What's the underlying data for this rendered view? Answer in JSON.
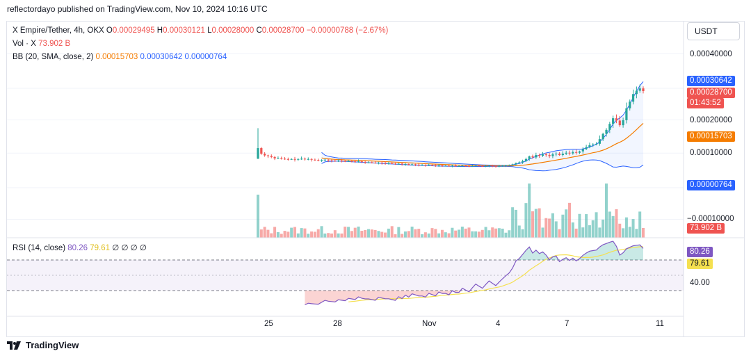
{
  "header": {
    "published": "reflectordayo published on TradingView.com, Nov 10, 2024 10:16 UTC"
  },
  "legend": {
    "symbol": "X Empire/Tether, 4h, OKX",
    "ohlc": {
      "o_label": "O",
      "o": "0.00029495",
      "h_label": "H",
      "h": "0.00030121",
      "l_label": "L",
      "l": "0.00028000",
      "c_label": "C",
      "c": "0.00028700",
      "change": "−0.00000788 (−2.67%)"
    },
    "vol_label": "Vol · X",
    "vol": "73.902 B",
    "bb_label": "BB (20, SMA, close, 2)",
    "bb_basis": "0.00015703",
    "bb_upper": "0.00030642",
    "bb_lower": "0.00000764"
  },
  "rsi_legend": {
    "label": "RSI (14, close)",
    "rsi": "80.26",
    "rsi_ma": "79.61",
    "extras": "∅ ∅ ∅ ∅"
  },
  "currency": "USDT",
  "price_axis": {
    "ticks": [
      "0.00040000",
      "0.00020000",
      "0.00010000",
      "−0.00010000"
    ]
  },
  "price_badges": {
    "bb_upper": "0.00030642",
    "last": "0.00028700",
    "countdown": "01:43:52",
    "bb_basis": "0.00015703",
    "bb_lower": "0.00000764",
    "volume": "73.902 B"
  },
  "rsi_axis": {
    "tick": "40.00",
    "rsi_badge": "80.26",
    "ma_badge": "79.61"
  },
  "time_axis": {
    "labels": [
      "25",
      "28",
      "Nov",
      "4",
      "7",
      "11"
    ]
  },
  "footer": {
    "brand": "TradingView"
  },
  "colors": {
    "up": "#26a69a",
    "down": "#ef5350",
    "bb_band": "#2962ff",
    "bb_basis": "#f57c00",
    "rsi": "#7e57c2",
    "rsi_ma": "#f5e050",
    "grid": "#f0f3fa"
  },
  "chart_data": [
    {
      "type": "candlestick",
      "title": "X Empire/Tether, 4h, OKX",
      "x_labels": [
        "25",
        "28",
        "Nov",
        "4",
        "7",
        "11"
      ],
      "y_ticks": [
        0.0004,
        0.0002,
        0.0001,
        -0.0001
      ],
      "closes": [
        0.000115,
        9.8e-05,
        9.3e-05,
        9.1e-05,
        8.8e-05,
        8.4e-05,
        8.5e-05,
        8.3e-05,
        8.2e-05,
        8.1e-05,
        8.2e-05,
        8e-05,
        8.2e-05,
        8.3e-05,
        8.1e-05,
        8.2e-05,
        8e-05,
        7.9e-05,
        7.8e-05,
        7.9e-05,
        8e-05,
        7.8e-05,
        7.7e-05,
        7.6e-05,
        7.7e-05,
        7.6e-05,
        7.5e-05,
        7.6e-05,
        7.5e-05,
        7.4e-05,
        7.5e-05,
        7.3e-05,
        7.2e-05,
        7.2e-05,
        7.1e-05,
        7e-05,
        7.1e-05,
        7e-05,
        6.9e-05,
        6.9e-05,
        6.8e-05,
        6.7e-05,
        6.8e-05,
        6.6e-05,
        6.7e-05,
        6.5e-05,
        6.6e-05,
        6.5e-05,
        6.4e-05,
        6.4e-05,
        6.3e-05,
        6.4e-05,
        6.3e-05,
        6.2e-05,
        6.3e-05,
        6.2e-05,
        6.2e-05,
        6.1e-05,
        6.2e-05,
        6.1e-05,
        6.1e-05,
        6.2e-05,
        6.1e-05,
        6e-05,
        6.1e-05,
        6.2e-05,
        6.1e-05,
        6e-05,
        6.1e-05,
        6.2e-05,
        6.1e-05,
        6e-05,
        6.1e-05,
        6.2e-05,
        6.3e-05,
        6.4e-05,
        6.6e-05,
        7e-05,
        7.2e-05,
        7.6e-05,
        8.2e-05,
        9e-05,
        8.7e-05,
        9.4e-05,
        9.2e-05,
        9.6e-05,
        9.4e-05,
        9.1e-05,
        9.6e-05,
        9.8e-05,
        9.4e-05,
        9.8e-05,
        0.000101,
        9.9e-05,
        0.000103,
        0.000101,
        0.000105,
        0.000112,
        0.000118,
        0.000124,
        0.000126,
        0.000128,
        0.000142,
        0.000158,
        0.00017,
        0.000188,
        0.000205,
        0.000198,
        0.000184,
        0.000199,
        0.000235,
        0.000255,
        0.000278,
        0.000288,
        0.000295,
        0.000287
      ],
      "bb": {
        "period": 20,
        "basis": 0.00015703,
        "upper": 0.00030642,
        "lower": 7.64e-06
      },
      "volume_last": "73.902 B"
    },
    {
      "type": "line",
      "title": "RSI (14, close)",
      "series": [
        {
          "name": "RSI",
          "last": 80.26
        },
        {
          "name": "RSI-based MA",
          "last": 79.61
        }
      ],
      "y_ticks": [
        40.0
      ],
      "bands": [
        70,
        50,
        30
      ]
    }
  ]
}
